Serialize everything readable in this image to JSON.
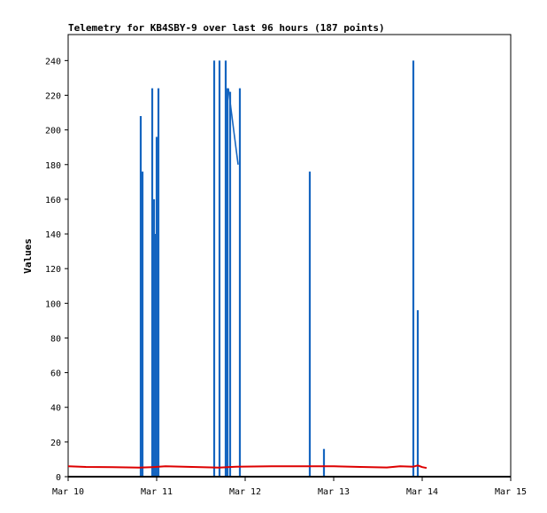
{
  "chart_data": {
    "type": "line",
    "title": "Telemetry for KB4SBY-9 over last 96 hours (187 points)",
    "xlabel": "",
    "ylabel": "Values",
    "x_ticks": [
      "Mar 10",
      "Mar 11",
      "Mar 12",
      "Mar 13",
      "Mar 14",
      "Mar 15"
    ],
    "xlim_days": [
      10,
      15
    ],
    "ylim": [
      0,
      255
    ],
    "y_ticks": [
      0,
      20,
      40,
      60,
      80,
      100,
      120,
      140,
      160,
      180,
      200,
      220,
      240
    ],
    "grid": false,
    "colors": {
      "series_blue": "#1565c0",
      "series_red": "#dd0000",
      "baseline": "#000000"
    },
    "series": [
      {
        "color": "#1565c0",
        "style": "spikes",
        "x_days": [
          10.82,
          10.84,
          10.95,
          10.97,
          10.98,
          11.0,
          11.02,
          11.65,
          11.71,
          11.78,
          11.8,
          11.83,
          11.94,
          12.73,
          12.89,
          13.9,
          13.95
        ],
        "values": [
          208,
          176,
          224,
          160,
          140,
          196,
          224,
          240,
          240,
          240,
          224,
          222,
          224,
          176,
          16,
          240,
          96
        ]
      },
      {
        "color": "#1565c0",
        "style": "segment",
        "x_days": [
          11.81,
          11.92
        ],
        "values": [
          224,
          180
        ]
      },
      {
        "color": "#dd0000",
        "style": "line",
        "x_days": [
          10.0,
          10.2,
          10.5,
          10.8,
          10.95,
          11.1,
          11.4,
          11.7,
          11.9,
          12.3,
          12.7,
          13.0,
          13.3,
          13.6,
          13.75,
          13.9,
          13.95,
          14.0,
          14.05
        ],
        "values": [
          6,
          5.6,
          5.5,
          5.2,
          5.5,
          6,
          5.6,
          5.2,
          5.8,
          6,
          6,
          6,
          5.6,
          5.3,
          6,
          5.8,
          6.5,
          5.5,
          5
        ]
      }
    ]
  }
}
